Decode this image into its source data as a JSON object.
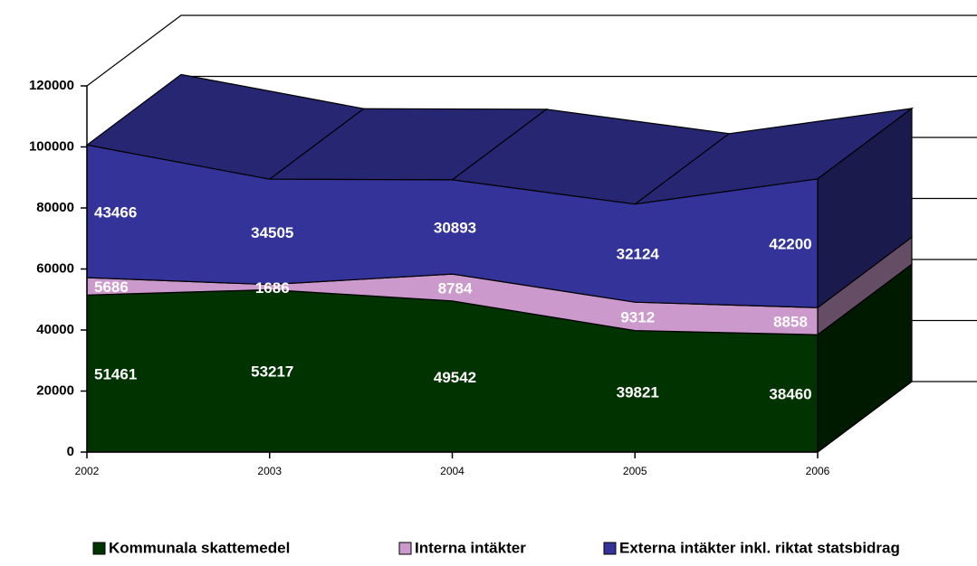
{
  "chart_data": {
    "type": "area",
    "stacked": true,
    "categories": [
      "2002",
      "2003",
      "2004",
      "2005",
      "2006"
    ],
    "series": [
      {
        "name": "Kommunala skattemedel",
        "color": "#003300",
        "values": [
          51461,
          53217,
          49542,
          39821,
          38460
        ]
      },
      {
        "name": "Interna intäkter",
        "color": "#cc99cc",
        "values": [
          5686,
          1686,
          8784,
          9312,
          8858
        ]
      },
      {
        "name": "Externa intäkter inkl. riktat statsbidrag",
        "color": "#333399",
        "values": [
          43466,
          34505,
          30893,
          32124,
          42200
        ]
      }
    ],
    "ylim": [
      0,
      120000
    ],
    "yticks": [
      0,
      20000,
      40000,
      60000,
      80000,
      100000,
      120000
    ],
    "grid": true,
    "legend": "bottom"
  }
}
